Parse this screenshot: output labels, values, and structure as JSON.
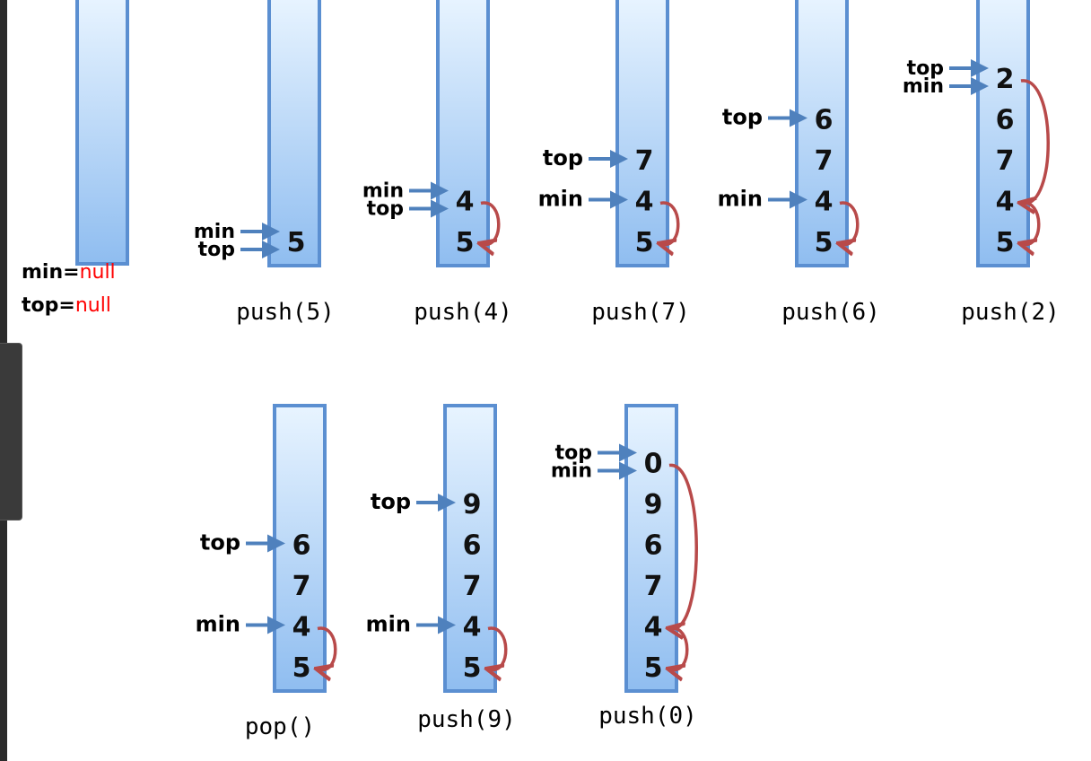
{
  "initial": {
    "min_label": "min=",
    "min_value": "null",
    "top_label": "top=",
    "top_value": "null"
  },
  "colors": {
    "stack_fill_top": "#e8f4ff",
    "stack_fill_bottom": "#8fbdf0",
    "stack_border": "#5b8fd1",
    "pointer_arrow": "#4f81bd",
    "link_arrow": "#b84a4a",
    "null_text": "#ff0000"
  },
  "stacks": [
    {
      "caption": "push(5)",
      "values": [
        "5"
      ],
      "pointers": [
        {
          "label": "min",
          "target": 0,
          "slot": "upper"
        },
        {
          "label": "top",
          "target": 0,
          "slot": "lower"
        }
      ],
      "links": []
    },
    {
      "caption": "push(4)",
      "values": [
        "4",
        "5"
      ],
      "pointers": [
        {
          "label": "min",
          "target": 0,
          "slot": "upper"
        },
        {
          "label": "top",
          "target": 0,
          "slot": "lower"
        }
      ],
      "links": [
        [
          0,
          1
        ]
      ]
    },
    {
      "caption": "push(7)",
      "values": [
        "7",
        "4",
        "5"
      ],
      "pointers": [
        {
          "label": "top",
          "target": 0,
          "slot": "single"
        },
        {
          "label": "min",
          "target": 1,
          "slot": "single"
        }
      ],
      "links": [
        [
          1,
          2
        ]
      ]
    },
    {
      "caption": "push(6)",
      "values": [
        "6",
        "7",
        "4",
        "5"
      ],
      "pointers": [
        {
          "label": "top",
          "target": 0,
          "slot": "single"
        },
        {
          "label": "min",
          "target": 2,
          "slot": "single"
        }
      ],
      "links": [
        [
          2,
          3
        ]
      ]
    },
    {
      "caption": "push(2)",
      "values": [
        "2",
        "6",
        "7",
        "4",
        "5"
      ],
      "pointers": [
        {
          "label": "top",
          "target": 0,
          "slot": "upper"
        },
        {
          "label": "min",
          "target": 0,
          "slot": "lower"
        }
      ],
      "links": [
        [
          0,
          3
        ],
        [
          3,
          4
        ]
      ]
    },
    {
      "caption": "pop()",
      "values": [
        "6",
        "7",
        "4",
        "5"
      ],
      "pointers": [
        {
          "label": "top",
          "target": 0,
          "slot": "single"
        },
        {
          "label": "min",
          "target": 2,
          "slot": "single"
        }
      ],
      "links": [
        [
          2,
          3
        ]
      ]
    },
    {
      "caption": "push(9)",
      "values": [
        "9",
        "6",
        "7",
        "4",
        "5"
      ],
      "pointers": [
        {
          "label": "top",
          "target": 0,
          "slot": "single"
        },
        {
          "label": "min",
          "target": 3,
          "slot": "single"
        }
      ],
      "links": [
        [
          3,
          4
        ]
      ]
    },
    {
      "caption": "push(0)",
      "values": [
        "0",
        "9",
        "6",
        "7",
        "4",
        "5"
      ],
      "pointers": [
        {
          "label": "top",
          "target": 0,
          "slot": "upper"
        },
        {
          "label": "min",
          "target": 0,
          "slot": "lower"
        }
      ],
      "links": [
        [
          0,
          4
        ],
        [
          4,
          5
        ]
      ]
    }
  ]
}
